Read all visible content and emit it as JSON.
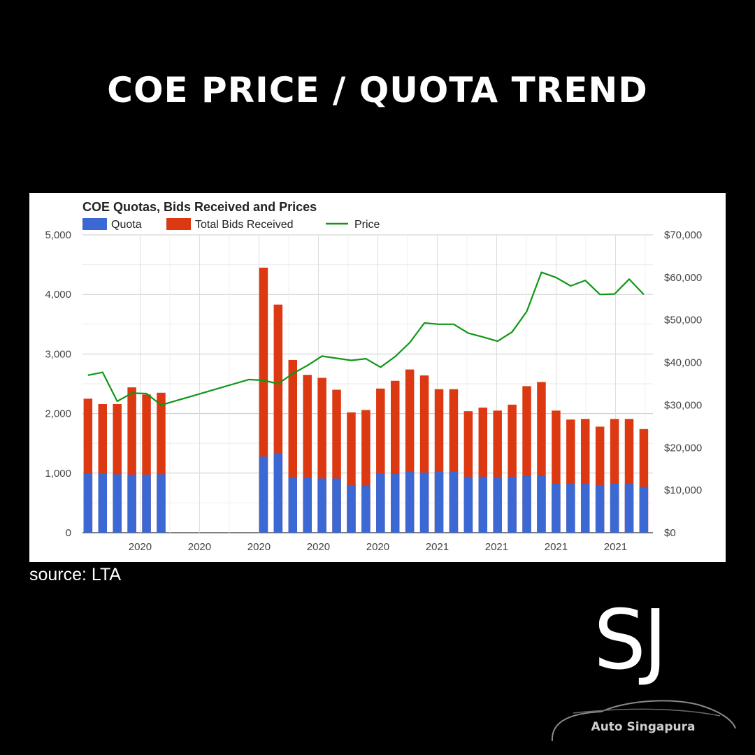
{
  "headline": "COE PRICE / QUOTA TREND",
  "source": "source: LTA",
  "brand": {
    "monogram": "SJ",
    "name": "Auto Singapura"
  },
  "chart_data": {
    "type": "bar",
    "title": "COE Quotas, Bids Received and Prices",
    "legend_position": "top-left",
    "grid": true,
    "series": [
      {
        "name": "Quota",
        "kind": "bar",
        "color": "#3b68d2",
        "values": [
          1000,
          1000,
          980,
          975,
          975,
          980,
          null,
          null,
          null,
          null,
          null,
          null,
          1280,
          1340,
          920,
          920,
          910,
          910,
          800,
          790,
          1000,
          990,
          1020,
          1010,
          1030,
          1030,
          940,
          940,
          930,
          940,
          950,
          950,
          820,
          820,
          820,
          800,
          830,
          820,
          770
        ]
      },
      {
        "name": "Total Bids Received",
        "kind": "bar",
        "color": "#dc3912",
        "values": [
          2250,
          2160,
          2160,
          2440,
          2320,
          2350,
          null,
          null,
          null,
          null,
          null,
          null,
          4450,
          3830,
          2900,
          2650,
          2600,
          2400,
          2020,
          2060,
          2420,
          2550,
          2740,
          2640,
          2410,
          2410,
          2040,
          2100,
          2050,
          2150,
          2460,
          2530,
          2050,
          1900,
          1910,
          1780,
          1910,
          1910,
          1740
        ]
      },
      {
        "name": "Price",
        "kind": "line",
        "color": "#109618",
        "values": [
          37000,
          37700,
          30900,
          32800,
          32700,
          30000,
          31000,
          32000,
          33000,
          34000,
          35000,
          36000,
          35800,
          35000,
          37400,
          39300,
          41500,
          41000,
          40500,
          40900,
          38900,
          41400,
          44700,
          49300,
          49000,
          49000,
          46900,
          46000,
          45000,
          47200,
          52000,
          61200,
          60000,
          58000,
          59300,
          56000,
          56100,
          59600,
          56000
        ]
      }
    ],
    "x_tick_labels": [
      "2020",
      "2020",
      "2020",
      "2020",
      "2020",
      "2021",
      "2021",
      "2021",
      "2021"
    ],
    "left_axis": {
      "ylim": [
        0,
        5000
      ],
      "tick_labels": [
        "0",
        "1,000",
        "2,000",
        "3,000",
        "4,000",
        "5,000"
      ]
    },
    "right_axis": {
      "ylim": [
        0,
        70000
      ],
      "tick_labels": [
        "$0",
        "$10,000",
        "$20,000",
        "$30,000",
        "$40,000",
        "$50,000",
        "$60,000",
        "$70,000"
      ]
    }
  }
}
